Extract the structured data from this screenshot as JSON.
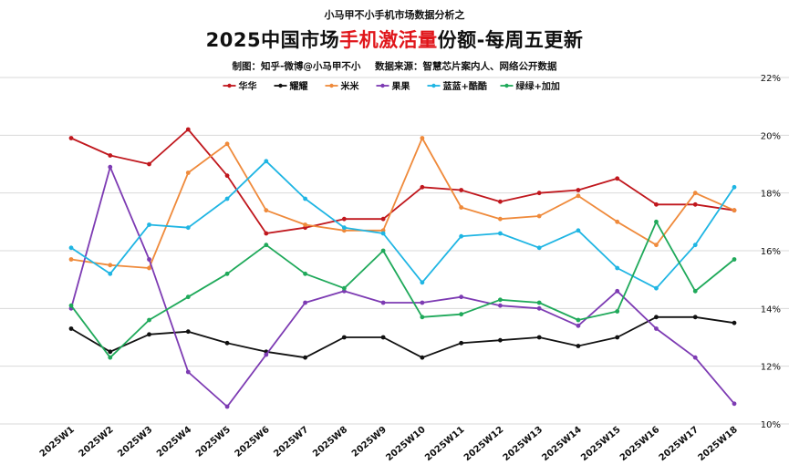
{
  "header": {
    "kicker": "小马甲不小手机市场数据分析之",
    "title_prefix": "2025中国市场",
    "title_highlight": "手机激活量",
    "title_suffix": "份额-每周五更新",
    "credit_author": "制图：知乎-微博@小马甲不小",
    "credit_source": "数据来源：智慧芯片案内人、网络公开数据"
  },
  "colors": {
    "title_highlight": "#e0161b",
    "grid": "#d9d9d9"
  },
  "chart_data": {
    "type": "line",
    "categories": [
      "2025W1",
      "2025W2",
      "2025W3",
      "2025W4",
      "2025W5",
      "2025W6",
      "2025W7",
      "2025W8",
      "2025W9",
      "2025W10",
      "2025W11",
      "2025W12",
      "2025W13",
      "2025W14",
      "2025W15",
      "2025W16",
      "2025W17",
      "2025W18"
    ],
    "ylim": [
      10,
      22
    ],
    "yticks": [
      "10%",
      "12%",
      "14%",
      "16%",
      "18%",
      "20%",
      "22%"
    ],
    "grid": true,
    "legend_position": "top",
    "series": [
      {
        "name": "华华",
        "color": "#c0171d",
        "values": [
          19.9,
          19.3,
          19.0,
          20.2,
          18.6,
          16.6,
          16.8,
          17.1,
          17.1,
          18.2,
          18.1,
          17.7,
          18.0,
          18.1,
          18.5,
          17.6,
          17.6,
          17.4
        ]
      },
      {
        "name": "耀耀",
        "color": "#111111",
        "values": [
          13.3,
          12.5,
          13.1,
          13.2,
          12.8,
          12.5,
          12.3,
          13.0,
          13.0,
          12.3,
          12.8,
          12.9,
          13.0,
          12.7,
          13.0,
          13.7,
          13.7,
          13.5
        ]
      },
      {
        "name": "米米",
        "color": "#ef8a3b",
        "values": [
          15.7,
          15.5,
          15.4,
          18.7,
          19.7,
          17.4,
          16.9,
          16.7,
          16.7,
          19.9,
          17.5,
          17.1,
          17.2,
          17.9,
          17.0,
          16.2,
          18.0,
          17.4
        ]
      },
      {
        "name": "果果",
        "color": "#7d3bb3",
        "values": [
          14.0,
          18.9,
          15.7,
          11.8,
          10.6,
          12.4,
          14.2,
          14.6,
          14.2,
          14.2,
          14.4,
          14.1,
          14.0,
          13.4,
          14.6,
          13.3,
          12.3,
          10.7
        ]
      },
      {
        "name": "蓝蓝+酷酷",
        "color": "#1fb5e3",
        "values": [
          16.1,
          15.2,
          16.9,
          16.8,
          17.8,
          19.1,
          17.8,
          16.8,
          16.6,
          14.9,
          16.5,
          16.6,
          16.1,
          16.7,
          15.4,
          14.7,
          16.2,
          18.2
        ]
      },
      {
        "name": "绿绿+加加",
        "color": "#1fa95a",
        "values": [
          14.1,
          12.3,
          13.6,
          14.4,
          15.2,
          16.2,
          15.2,
          14.7,
          16.0,
          13.7,
          13.8,
          14.3,
          14.2,
          13.6,
          13.9,
          17.0,
          14.6,
          15.7
        ]
      }
    ]
  }
}
